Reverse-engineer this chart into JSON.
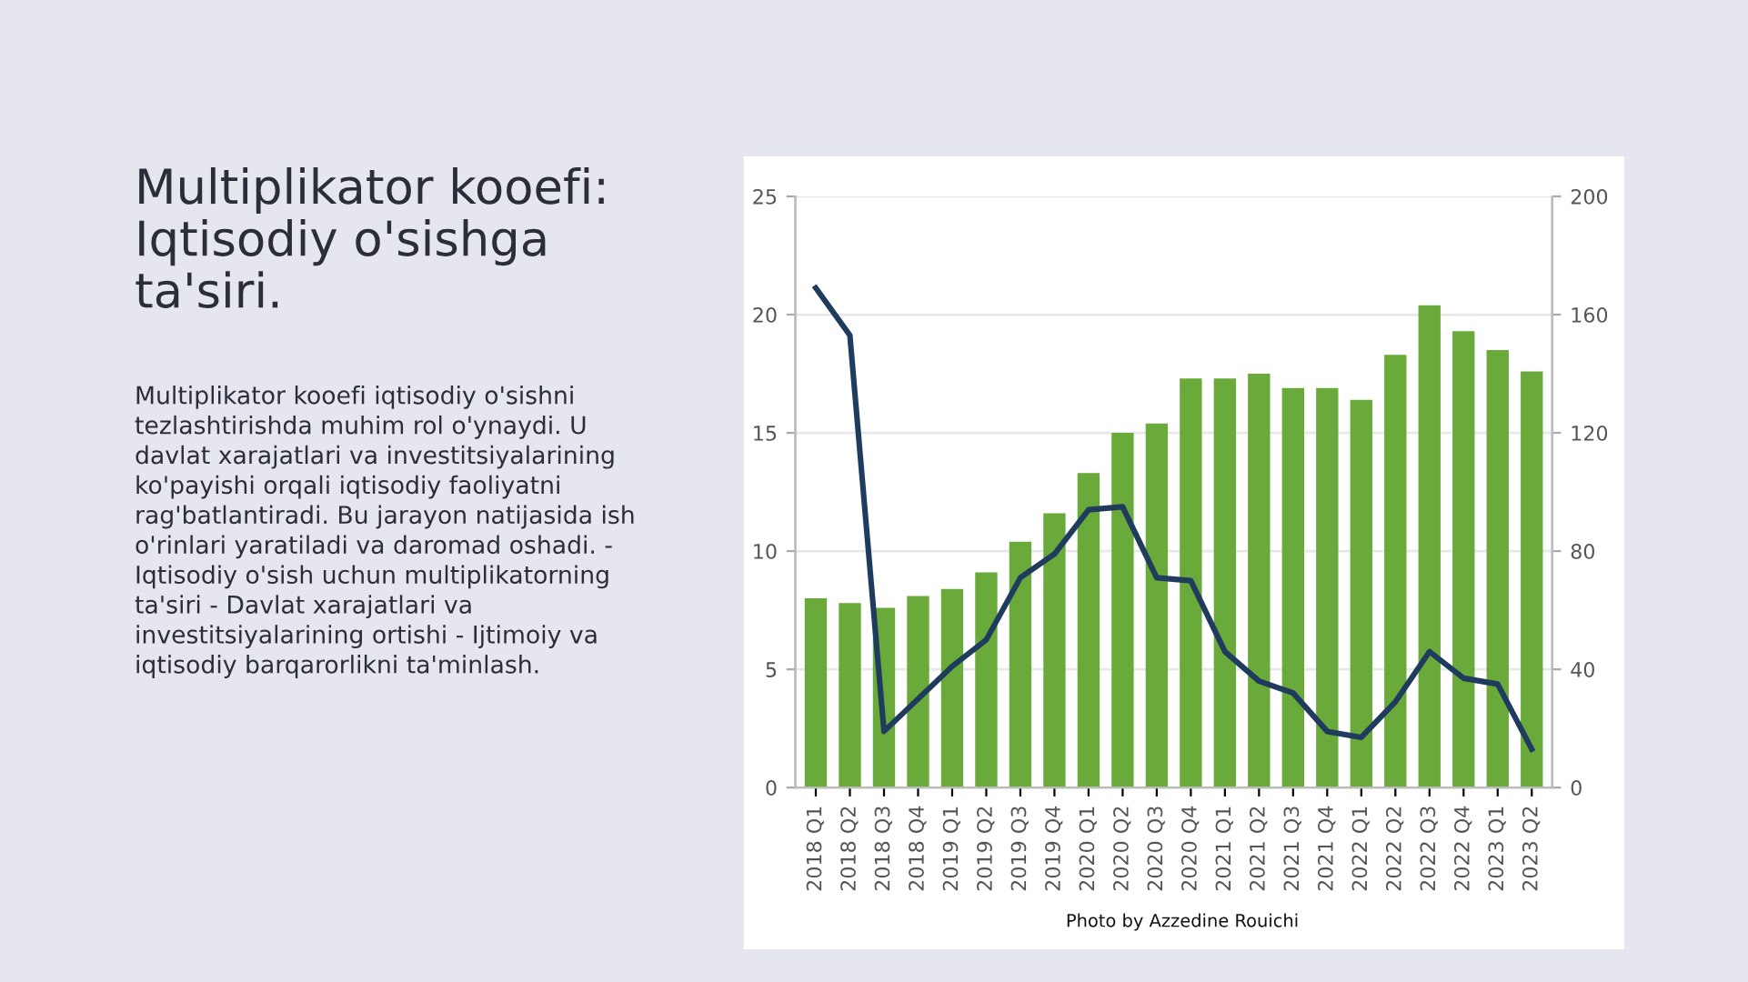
{
  "chart_data": {
    "type": "bar",
    "title": "Multiplikator kooefi:\nIqtisodiy o'sishga\nta'siri.",
    "subtitle": "Multiplikator kooefi iqtisodiy o'sishni tezlashtirishda muhim rol o'ynaydi. U davlat xarajatlari va investitsiyalarining ko'payishi orqali iqtisodiy faoliyatni rag'batlantiradi. Bu jarayon natijasida ish o'rinlari yaratiladi va daromad oshadi. - Iqtisodiy o'sish uchun multiplikatorning ta'siri - Davlat xarajatlari va investitsiyalarining ortishi - Ijtimoiy va iqtisodiy barqarorlikni ta'minlash.",
    "annotations": [
      "Photo by Azzedine Rouichi"
    ],
    "categories": [
      "2018 Q1",
      "2018 Q2",
      "2018 Q3",
      "2018 Q4",
      "2019 Q1",
      "2019 Q2",
      "2019 Q3",
      "2019 Q4",
      "2020 Q1",
      "2020 Q2",
      "2020 Q3",
      "2020 Q4",
      "2021 Q1",
      "2021 Q2",
      "2021 Q3",
      "2021 Q4",
      "2022 Q1",
      "2022 Q2",
      "2022 Q3",
      "2022 Q4",
      "2023 Q1",
      "2023 Q2"
    ],
    "series": [
      {
        "color": "#6aaa3a",
        "values": [
          8.0,
          7.8,
          7.6,
          8.1,
          8.4,
          9.1,
          10.4,
          11.6,
          13.3,
          15.0,
          15.4,
          17.3,
          17.3,
          17.5,
          16.9,
          16.9,
          16.4,
          18.3,
          20.4,
          19.3,
          18.5,
          17.6
        ]
      },
      {
        "type": "line",
        "axis": "y2",
        "color": "#1f3b5e",
        "values": [
          169,
          153,
          19,
          30,
          41,
          50,
          71,
          79,
          94,
          95,
          71,
          70,
          46,
          36,
          32,
          19,
          17,
          29,
          46,
          37,
          35,
          13
        ]
      }
    ],
    "ylim": [
      0,
      25
    ],
    "yticks": [
      0,
      5,
      10,
      15,
      20,
      25
    ],
    "y2lim": [
      0,
      200
    ],
    "y2ticks": [
      0,
      40,
      80,
      120,
      160,
      200
    ],
    "grid": "y",
    "legend": false,
    "marker": "none",
    "line_style": "solid"
  }
}
